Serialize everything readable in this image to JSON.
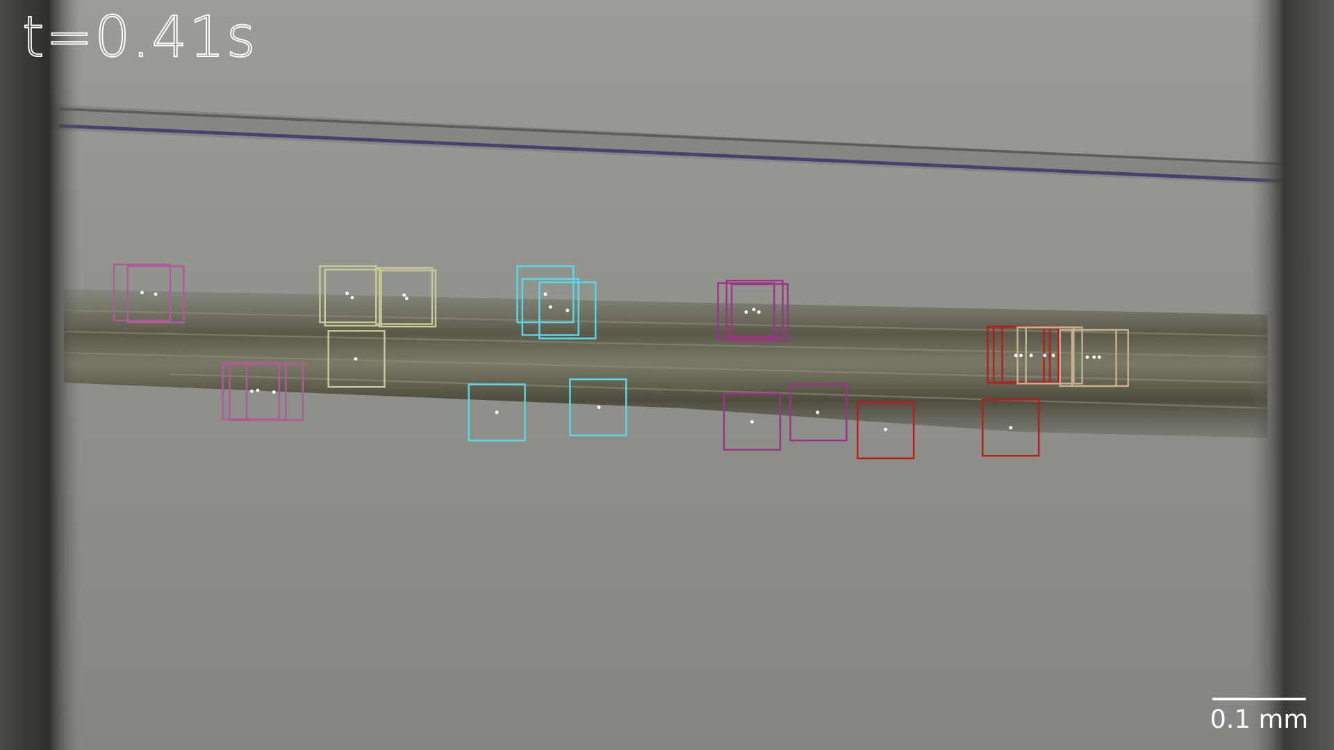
{
  "overlay": {
    "timestamp": "t=0.41s",
    "scale_bar_label": "0.1 mm"
  }
}
